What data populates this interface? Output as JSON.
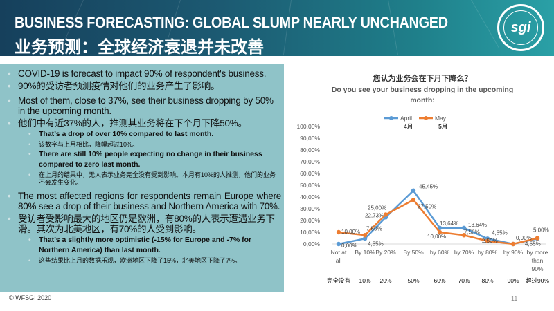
{
  "header": {
    "title_en": "BUSINESS FORECASTING: GLOBAL SLUMP NEARLY UNCHANGED",
    "title_zh": "业务预测：全球经济衰退并未改善",
    "logo_text": "sgi",
    "logo_ring": "WORLD FEDERATION SPORTING GOODS INDUSTRY"
  },
  "panel": {
    "items": [
      {
        "level": 1,
        "text": "COVID-19 is forecast to impact 90% of  respondent's business."
      },
      {
        "level": 1,
        "text": "90%的受访者预测疫情对他们的业务产生了影响。"
      },
      {
        "level": 1,
        "text": "Most of them, close to 37%, see their business  dropping by 50% in the upcoming month."
      },
      {
        "level": 1,
        "text": "他们中有近37%的人，推测其业务将在下个月下降50%。"
      },
      {
        "level": 2,
        "text": "That’s a drop of over 10% compared to last month."
      },
      {
        "level": 3,
        "text": "该数字与上月相比，降幅超过10%。"
      },
      {
        "level": 2,
        "text": "There are still 10% people expecting no change in their business compared to zero last month."
      },
      {
        "level": 3,
        "text": "在上月的结果中，无人表示业务完全没有受到影响。本月有10%的人推测，他们的业务不会发生变化。"
      },
      {
        "level": 1,
        "text": "The most affected regions for respondents remain Europe where 80% see a drop of their business and Northern America with 70%."
      },
      {
        "level": 1,
        "text": "受访者受影响最大的地区仍是欧洲，有80%的人表示遭遇业务下滑。其次为北美地区，有70%的人受到影响。"
      },
      {
        "level": 2,
        "text": "That’s a slightly more optimistic (-15% for Europe and -7% for Northern America) than last  month."
      },
      {
        "level": 3,
        "text": "这些结果比上月的数据乐观，欧洲地区下降了15%，北美地区下降了7%。"
      }
    ]
  },
  "chart_data": {
    "type": "line",
    "title_zh": "您认为业务会在下月下降么？",
    "title": "Do you see your business dropping in the upcoming month:",
    "categories": [
      "Not at all",
      "By 10%",
      "By 20%",
      "By 50%",
      "by 60%",
      "by 70%",
      "by 80%",
      "by 90%",
      "by more than 90%"
    ],
    "categories_zh": [
      "完全没有",
      "10%",
      "20%",
      "50%",
      "60%",
      "70%",
      "80%",
      "90%",
      "超过90%"
    ],
    "series": [
      {
        "name": "April",
        "name_zh": "4月",
        "color": "#5b9bd5",
        "values": [
          0,
          4.55,
          22.73,
          45.45,
          13.64,
          13.64,
          4.55,
          0,
          4.55
        ],
        "labels": [
          "0,00%",
          "4,55%",
          "22,73%",
          "45,45%",
          "13,64%",
          "13,64%",
          "4,55%",
          "",
          "4,55%"
        ]
      },
      {
        "name": "May",
        "name_zh": "5月",
        "color": "#ed7d31",
        "values": [
          10,
          7.5,
          25,
          37.5,
          10,
          7.5,
          2.5,
          0,
          5
        ],
        "labels": [
          "10,00%",
          "7,50%",
          "25,00%",
          "37,50%",
          "10,00%",
          "7,50%",
          "2,50%",
          "0,00%",
          "5,00%"
        ]
      }
    ],
    "yticks": [
      "0,00%",
      "10,00%",
      "20,00%",
      "30,00%",
      "40,00%",
      "50,00%",
      "60,00%",
      "70,00%",
      "80,00%",
      "90,00%",
      "100,00%"
    ],
    "ylim": [
      0,
      100
    ],
    "legend": "top"
  },
  "footer": {
    "copyright": "© WFSGI 2020",
    "page": "11"
  }
}
